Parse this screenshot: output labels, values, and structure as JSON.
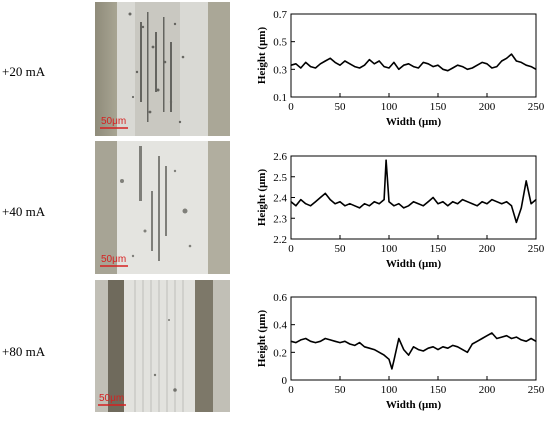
{
  "rows": [
    {
      "label": "+20 mA",
      "scale_label": "50μm"
    },
    {
      "label": "+40 mA",
      "scale_label": "50μm"
    },
    {
      "label": "+80 mA",
      "scale_label": "50μm"
    }
  ],
  "chart_data": [
    {
      "type": "line",
      "xlabel": "Width (μm)",
      "ylabel": "Height (μm)",
      "xlim": [
        0,
        250
      ],
      "ylim": [
        0.1,
        0.7
      ],
      "xticks": [
        0,
        50,
        100,
        150,
        200,
        250
      ],
      "yticks": [
        0.1,
        0.3,
        0.5,
        0.7
      ],
      "x_tick_labels": [
        "0",
        "50",
        "100",
        "150",
        "200",
        "250"
      ],
      "y_tick_labels": [
        "0.1",
        "0.3",
        "0.5",
        "0.7"
      ],
      "grid": false,
      "series": [
        {
          "x": [
            0,
            5,
            10,
            15,
            20,
            25,
            30,
            35,
            40,
            45,
            50,
            55,
            60,
            65,
            70,
            75,
            80,
            85,
            90,
            95,
            100,
            105,
            110,
            115,
            120,
            125,
            130,
            135,
            140,
            145,
            150,
            155,
            160,
            165,
            170,
            175,
            180,
            185,
            190,
            195,
            200,
            205,
            210,
            215,
            220,
            225,
            230,
            235,
            240,
            245,
            250
          ],
          "y": [
            0.33,
            0.34,
            0.31,
            0.35,
            0.32,
            0.31,
            0.34,
            0.36,
            0.38,
            0.35,
            0.33,
            0.36,
            0.34,
            0.32,
            0.31,
            0.33,
            0.37,
            0.34,
            0.36,
            0.32,
            0.31,
            0.35,
            0.3,
            0.33,
            0.34,
            0.32,
            0.31,
            0.35,
            0.34,
            0.32,
            0.33,
            0.3,
            0.29,
            0.31,
            0.33,
            0.32,
            0.3,
            0.31,
            0.33,
            0.35,
            0.34,
            0.31,
            0.32,
            0.36,
            0.38,
            0.41,
            0.36,
            0.35,
            0.33,
            0.32,
            0.3
          ]
        }
      ]
    },
    {
      "type": "line",
      "xlabel": "Width (μm)",
      "ylabel": "Height (μm)",
      "xlim": [
        0,
        250
      ],
      "ylim": [
        2.2,
        2.6
      ],
      "xticks": [
        0,
        50,
        100,
        150,
        200,
        250
      ],
      "yticks": [
        2.2,
        2.3,
        2.4,
        2.5,
        2.6
      ],
      "x_tick_labels": [
        "0",
        "50",
        "100",
        "150",
        "200",
        "250"
      ],
      "y_tick_labels": [
        "2.2",
        "2.3",
        "2.4",
        "2.5",
        "2.6"
      ],
      "grid": false,
      "series": [
        {
          "x": [
            0,
            5,
            10,
            15,
            20,
            25,
            30,
            35,
            40,
            45,
            50,
            55,
            60,
            65,
            70,
            75,
            80,
            85,
            90,
            95,
            97,
            100,
            105,
            110,
            115,
            120,
            125,
            130,
            135,
            140,
            145,
            150,
            155,
            160,
            165,
            170,
            175,
            180,
            185,
            190,
            195,
            200,
            205,
            210,
            215,
            220,
            225,
            230,
            235,
            240,
            245,
            250
          ],
          "y": [
            2.38,
            2.36,
            2.39,
            2.37,
            2.36,
            2.38,
            2.4,
            2.42,
            2.39,
            2.37,
            2.38,
            2.36,
            2.37,
            2.36,
            2.35,
            2.37,
            2.36,
            2.38,
            2.37,
            2.39,
            2.58,
            2.38,
            2.36,
            2.37,
            2.35,
            2.36,
            2.38,
            2.37,
            2.36,
            2.38,
            2.4,
            2.37,
            2.38,
            2.36,
            2.38,
            2.37,
            2.39,
            2.38,
            2.37,
            2.36,
            2.38,
            2.37,
            2.39,
            2.38,
            2.37,
            2.38,
            2.36,
            2.28,
            2.35,
            2.48,
            2.37,
            2.39
          ]
        }
      ]
    },
    {
      "type": "line",
      "xlabel": "Width (μm)",
      "ylabel": "Height (μm)",
      "xlim": [
        0,
        250
      ],
      "ylim": [
        0,
        0.6
      ],
      "xticks": [
        0,
        50,
        100,
        150,
        200,
        250
      ],
      "yticks": [
        0,
        0.2,
        0.4,
        0.6
      ],
      "x_tick_labels": [
        "0",
        "50",
        "100",
        "150",
        "200",
        "250"
      ],
      "y_tick_labels": [
        "0",
        "0.2",
        "0.4",
        "0.6"
      ],
      "grid": false,
      "series": [
        {
          "x": [
            0,
            5,
            10,
            15,
            20,
            25,
            30,
            35,
            40,
            45,
            50,
            55,
            60,
            65,
            70,
            75,
            80,
            85,
            90,
            95,
            100,
            103,
            105,
            110,
            115,
            120,
            125,
            130,
            135,
            140,
            145,
            150,
            155,
            160,
            165,
            170,
            175,
            180,
            185,
            190,
            195,
            200,
            205,
            210,
            215,
            220,
            225,
            230,
            235,
            240,
            245,
            250
          ],
          "y": [
            0.28,
            0.27,
            0.29,
            0.3,
            0.28,
            0.27,
            0.28,
            0.3,
            0.29,
            0.28,
            0.27,
            0.28,
            0.26,
            0.25,
            0.27,
            0.24,
            0.23,
            0.22,
            0.2,
            0.18,
            0.15,
            0.08,
            0.14,
            0.3,
            0.22,
            0.18,
            0.24,
            0.22,
            0.21,
            0.23,
            0.24,
            0.22,
            0.24,
            0.23,
            0.25,
            0.24,
            0.22,
            0.2,
            0.26,
            0.28,
            0.3,
            0.32,
            0.34,
            0.3,
            0.31,
            0.32,
            0.3,
            0.31,
            0.29,
            0.28,
            0.3,
            0.28
          ]
        }
      ]
    }
  ]
}
